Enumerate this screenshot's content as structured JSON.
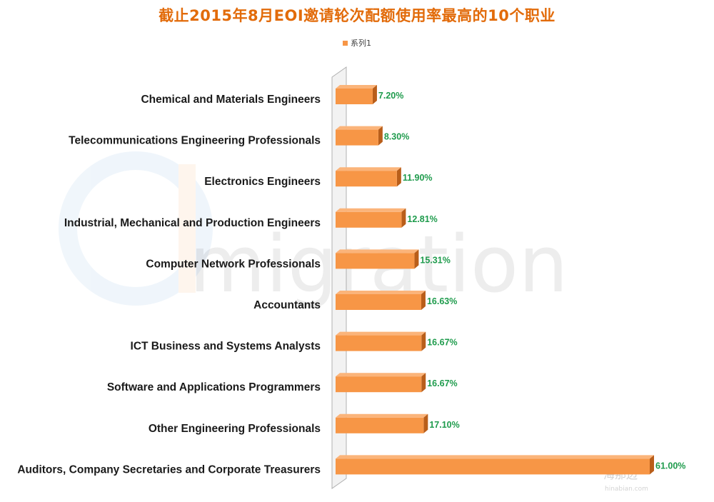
{
  "chart_data": {
    "type": "bar",
    "orientation": "horizontal",
    "title": "截止2015年8月EOI邀请轮次配额使用率最高的10个职业",
    "legend": "系列1",
    "legend_position": "top",
    "xlim": [
      0,
      61
    ],
    "categories": [
      "Chemical and Materials Engineers",
      "Telecommunications Engineering Professionals",
      "Electronics Engineers",
      "Industrial, Mechanical and Production Engineers",
      "Computer Network Professionals",
      "Accountants",
      "ICT Business and Systems Analysts",
      "Software and Applications Programmers",
      "Other Engineering Professionals",
      "Auditors, Company Secretaries and Corporate Treasurers"
    ],
    "values": [
      7.2,
      8.3,
      11.9,
      12.81,
      15.31,
      16.63,
      16.67,
      16.67,
      17.1,
      61.0
    ],
    "data_labels": [
      "7.20%",
      "8.30%",
      "11.90%",
      "12.81%",
      "15.31%",
      "16.63%",
      "16.67%",
      "16.67%",
      "17.10%",
      "61.00%"
    ],
    "colors": {
      "bar": "#f79646",
      "bar_top": "#fbb47a",
      "bar_side": "#b95e1a",
      "value_label": "#1e9b4c",
      "title": "#e26b0a"
    }
  },
  "watermarks": {
    "brand_large": "migration",
    "brand_small": "海那边",
    "brand_url": "hinabian.com"
  }
}
